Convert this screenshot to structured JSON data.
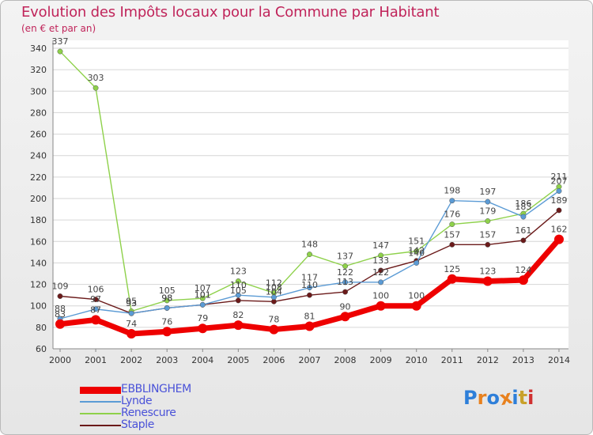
{
  "header": {
    "title": "Evolution des Impôts locaux pour la Commune par Habitant",
    "subtitle": "(en € et par an)"
  },
  "brand": {
    "letters": [
      "P",
      "r",
      "o",
      "x",
      "i",
      "t",
      "i"
    ],
    "colors": [
      "#2e7fd9",
      "#e8811e",
      "#2e7fd9",
      "#e8811e",
      "#2e7fd9",
      "#c9a12a",
      "#d03030"
    ]
  },
  "chart_data": {
    "type": "line",
    "categories": [
      "2000",
      "2001",
      "2002",
      "2003",
      "2004",
      "2005",
      "2006",
      "2007",
      "2008",
      "2009",
      "2010",
      "2011",
      "2012",
      "2013",
      "2014"
    ],
    "ylim": [
      60,
      340
    ],
    "yticks": [
      60,
      80,
      100,
      120,
      140,
      160,
      180,
      200,
      220,
      240,
      260,
      280,
      300,
      320,
      340
    ],
    "grid": "horizontal",
    "legend_position": "bottom-left",
    "series": [
      {
        "name": "EBBLINGHEM",
        "color": "#ee0000",
        "values": [
          83,
          87,
          74,
          76,
          79,
          82,
          78,
          81,
          90,
          100,
          100,
          125,
          123,
          124,
          162
        ]
      },
      {
        "name": "Lynde",
        "color": "#5b9bd5",
        "values": [
          88,
          97,
          93,
          98,
          101,
          110,
          108,
          117,
          122,
          122,
          140,
          198,
          197,
          183,
          207
        ]
      },
      {
        "name": "Renescure",
        "color": "#8ed14a",
        "values": [
          337,
          303,
          95,
          105,
          107,
          123,
          112,
          148,
          137,
          147,
          151,
          176,
          179,
          186,
          211
        ]
      },
      {
        "name": "Staple",
        "color": "#6b1a1a",
        "values": [
          109,
          106,
          93,
          98,
          101,
          105,
          104,
          110,
          113,
          133,
          142,
          157,
          157,
          161,
          189
        ]
      }
    ]
  }
}
